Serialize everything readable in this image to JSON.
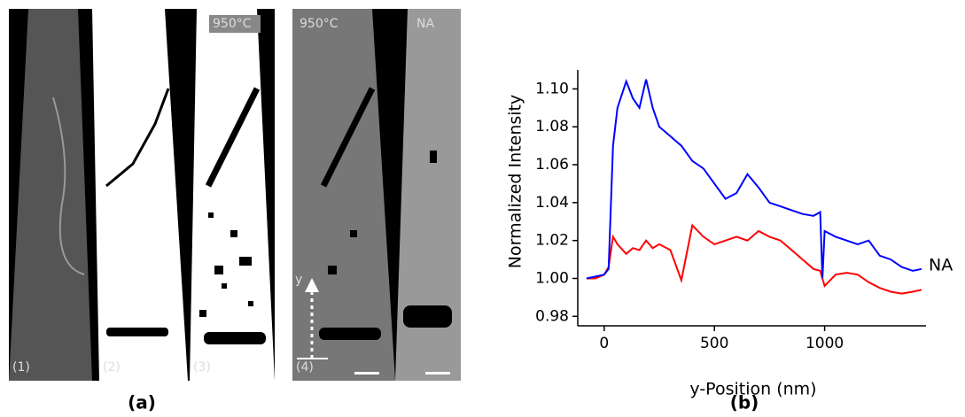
{
  "chart_data": {
    "type": "line",
    "xlabel": "y-Position (nm)",
    "ylabel": "Normalized Intensity",
    "xlim": [
      -120,
      1460
    ],
    "ylim": [
      0.975,
      1.11
    ],
    "xticks": [
      0,
      500,
      1000
    ],
    "yticks": [
      0.98,
      {
        "value": 1.0,
        "label": "1.00"
      },
      1.02,
      1.04,
      1.06,
      1.08,
      {
        "value": 1.1,
        "label": "1.10"
      }
    ],
    "x": [
      -80,
      -40,
      0,
      20,
      40,
      60,
      100,
      130,
      160,
      190,
      220,
      250,
      300,
      350,
      400,
      450,
      500,
      550,
      600,
      650,
      700,
      750,
      800,
      850,
      900,
      950,
      980,
      990,
      1000,
      1050,
      1100,
      1150,
      1200,
      1250,
      1300,
      1350,
      1400,
      1440
    ],
    "series": [
      {
        "name": "NA",
        "color": "#0000ff",
        "values": [
          1.0,
          1.001,
          1.002,
          1.005,
          1.07,
          1.09,
          1.104,
          1.095,
          1.09,
          1.105,
          1.09,
          1.08,
          1.075,
          1.07,
          1.062,
          1.058,
          1.05,
          1.042,
          1.045,
          1.055,
          1.048,
          1.04,
          1.038,
          1.036,
          1.034,
          1.033,
          1.035,
          1.0,
          1.025,
          1.022,
          1.02,
          1.018,
          1.02,
          1.012,
          1.01,
          1.006,
          1.004,
          1.005
        ]
      },
      {
        "color": "#ff0000",
        "values": [
          1.0,
          1.0,
          1.002,
          1.006,
          1.022,
          1.018,
          1.013,
          1.016,
          1.015,
          1.02,
          1.016,
          1.018,
          1.015,
          0.999,
          1.028,
          1.022,
          1.018,
          1.02,
          1.022,
          1.02,
          1.025,
          1.022,
          1.02,
          1.015,
          1.01,
          1.005,
          1.004,
          1.0,
          0.996,
          1.002,
          1.003,
          1.002,
          0.998,
          0.995,
          0.993,
          0.992,
          0.993,
          0.994
        ]
      }
    ]
  },
  "images": {
    "labels": [
      "(1)",
      "(2)",
      "(3)",
      "(4)"
    ],
    "temperature_labels": [
      "950°C",
      "950°C"
    ],
    "na_label": "NA",
    "axis_label": "y"
  },
  "panel_labels": [
    "(a)",
    "(b)"
  ]
}
